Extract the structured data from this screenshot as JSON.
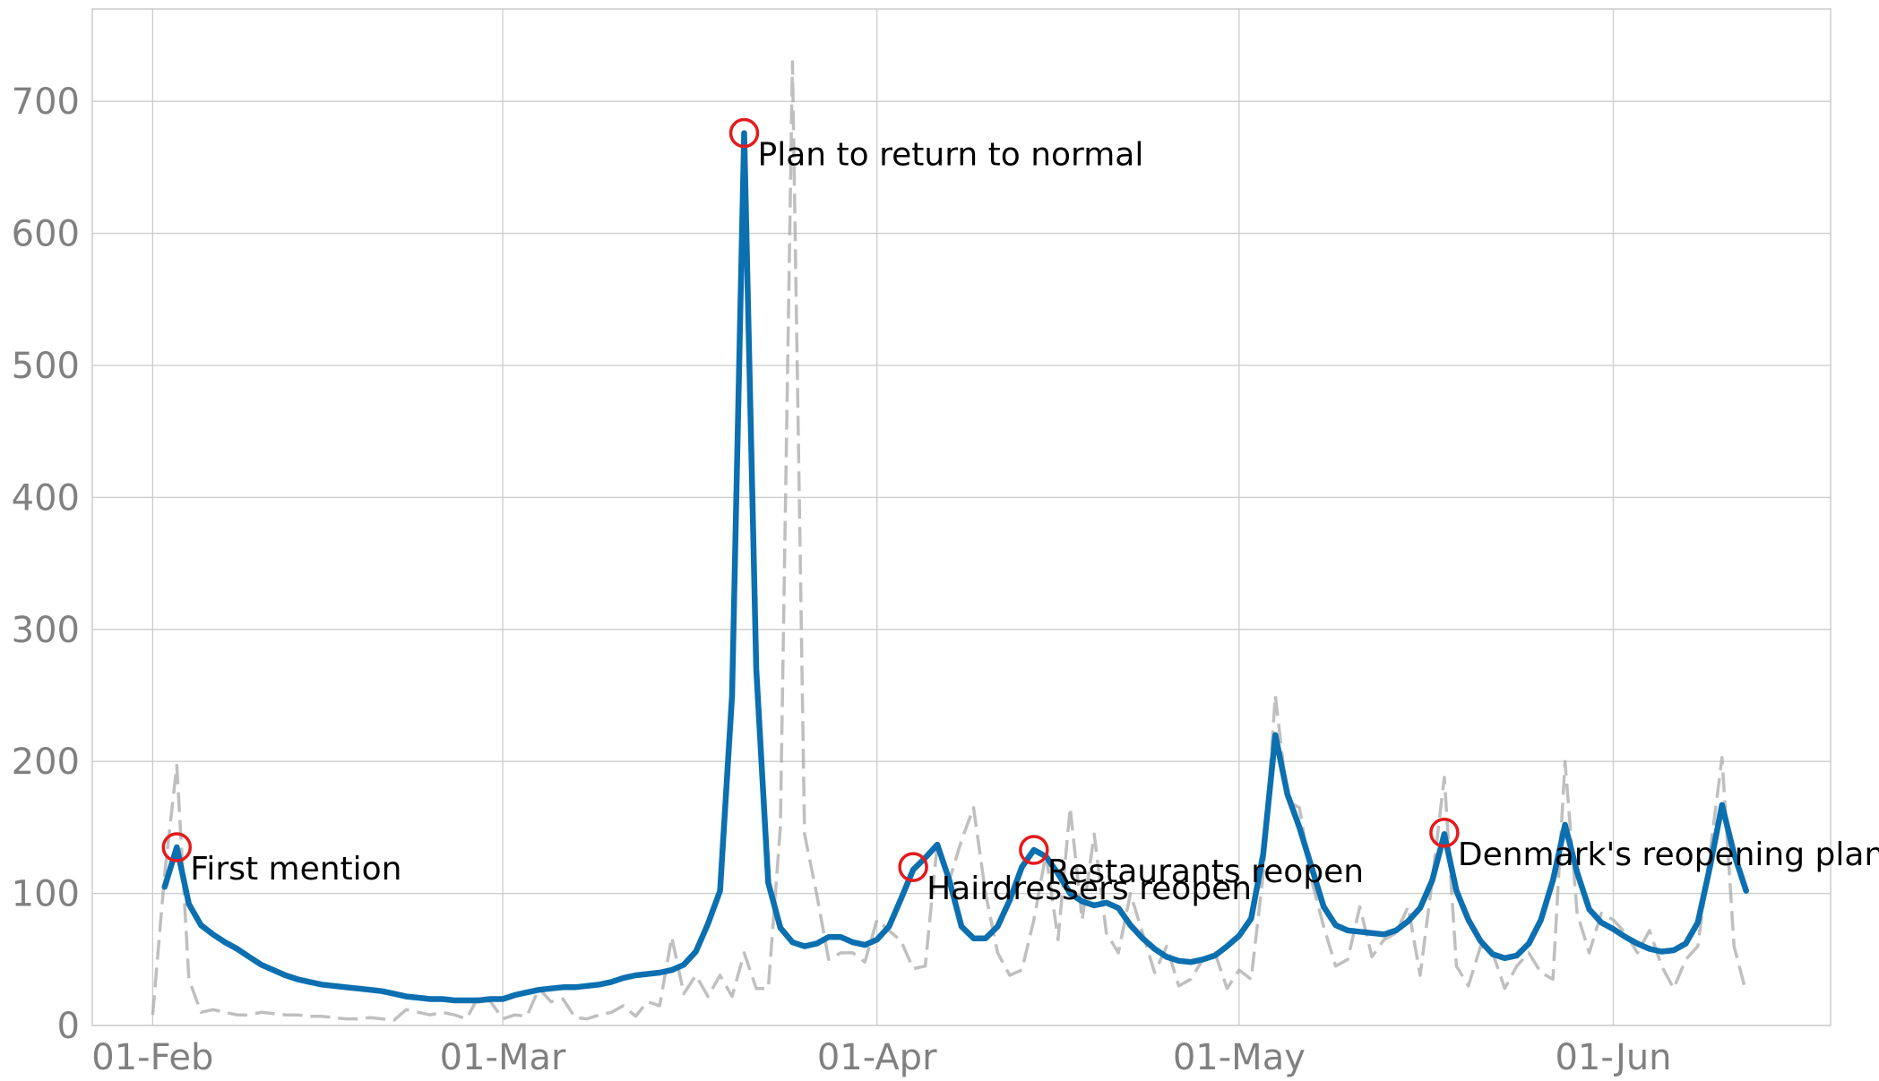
{
  "chart_data": {
    "type": "line",
    "title": "",
    "xlabel": "",
    "ylabel": "",
    "ylim": [
      0,
      770
    ],
    "y_ticks": [
      0,
      100,
      200,
      300,
      400,
      500,
      600,
      700
    ],
    "x_tick_labels": [
      {
        "date": "2020-02-01",
        "label": "01-Feb"
      },
      {
        "date": "2020-03-01",
        "label": "01-Mar"
      },
      {
        "date": "2020-04-01",
        "label": "01-Apr"
      },
      {
        "date": "2020-05-01",
        "label": "01-May"
      },
      {
        "date": "2020-06-01",
        "label": "01-Jun"
      }
    ],
    "grid": true,
    "colors": {
      "smoothed": "#0b6fb0",
      "raw": "#aaaaaa",
      "marker": "#e41a1c",
      "grid": "#cccccc"
    },
    "series": [
      {
        "style": "solid",
        "points": [
          [
            "2020-02-02",
            105
          ],
          [
            "2020-02-03",
            135
          ],
          [
            "2020-02-04",
            92
          ],
          [
            "2020-02-05",
            76
          ],
          [
            "2020-02-06",
            69
          ],
          [
            "2020-02-07",
            63
          ],
          [
            "2020-02-08",
            58
          ],
          [
            "2020-02-09",
            52
          ],
          [
            "2020-02-10",
            46
          ],
          [
            "2020-02-11",
            42
          ],
          [
            "2020-02-12",
            38
          ],
          [
            "2020-02-13",
            35
          ],
          [
            "2020-02-14",
            33
          ],
          [
            "2020-02-15",
            31
          ],
          [
            "2020-02-16",
            30
          ],
          [
            "2020-02-17",
            29
          ],
          [
            "2020-02-18",
            28
          ],
          [
            "2020-02-19",
            27
          ],
          [
            "2020-02-20",
            26
          ],
          [
            "2020-02-21",
            24
          ],
          [
            "2020-02-22",
            22
          ],
          [
            "2020-02-23",
            21
          ],
          [
            "2020-02-24",
            20
          ],
          [
            "2020-02-25",
            20
          ],
          [
            "2020-02-26",
            19
          ],
          [
            "2020-02-27",
            19
          ],
          [
            "2020-02-28",
            19
          ],
          [
            "2020-02-29",
            20
          ],
          [
            "2020-03-01",
            20
          ],
          [
            "2020-03-02",
            23
          ],
          [
            "2020-03-03",
            25
          ],
          [
            "2020-03-04",
            27
          ],
          [
            "2020-03-05",
            28
          ],
          [
            "2020-03-06",
            29
          ],
          [
            "2020-03-07",
            29
          ],
          [
            "2020-03-08",
            30
          ],
          [
            "2020-03-09",
            31
          ],
          [
            "2020-03-10",
            33
          ],
          [
            "2020-03-11",
            36
          ],
          [
            "2020-03-12",
            38
          ],
          [
            "2020-03-13",
            39
          ],
          [
            "2020-03-14",
            40
          ],
          [
            "2020-03-15",
            42
          ],
          [
            "2020-03-16",
            46
          ],
          [
            "2020-03-17",
            56
          ],
          [
            "2020-03-18",
            77
          ],
          [
            "2020-03-19",
            102
          ],
          [
            "2020-03-20",
            250
          ],
          [
            "2020-03-21",
            676
          ],
          [
            "2020-03-22",
            270
          ],
          [
            "2020-03-23",
            108
          ],
          [
            "2020-03-24",
            74
          ],
          [
            "2020-03-25",
            63
          ],
          [
            "2020-03-26",
            60
          ],
          [
            "2020-03-27",
            62
          ],
          [
            "2020-03-28",
            67
          ],
          [
            "2020-03-29",
            67
          ],
          [
            "2020-03-30",
            63
          ],
          [
            "2020-03-31",
            61
          ],
          [
            "2020-04-01",
            65
          ],
          [
            "2020-04-02",
            75
          ],
          [
            "2020-04-03",
            96
          ],
          [
            "2020-04-04",
            118
          ],
          [
            "2020-04-05",
            127
          ],
          [
            "2020-04-06",
            137
          ],
          [
            "2020-04-07",
            110
          ],
          [
            "2020-04-08",
            75
          ],
          [
            "2020-04-09",
            66
          ],
          [
            "2020-04-10",
            66
          ],
          [
            "2020-04-11",
            75
          ],
          [
            "2020-04-12",
            95
          ],
          [
            "2020-04-13",
            120
          ],
          [
            "2020-04-14",
            133
          ],
          [
            "2020-04-15",
            128
          ],
          [
            "2020-04-16",
            115
          ],
          [
            "2020-04-17",
            100
          ],
          [
            "2020-04-18",
            94
          ],
          [
            "2020-04-19",
            91
          ],
          [
            "2020-04-20",
            93
          ],
          [
            "2020-04-21",
            89
          ],
          [
            "2020-04-22",
            76
          ],
          [
            "2020-04-23",
            66
          ],
          [
            "2020-04-24",
            58
          ],
          [
            "2020-04-25",
            52
          ],
          [
            "2020-04-26",
            49
          ],
          [
            "2020-04-27",
            48
          ],
          [
            "2020-04-28",
            50
          ],
          [
            "2020-04-29",
            53
          ],
          [
            "2020-04-30",
            60
          ],
          [
            "2020-05-01",
            68
          ],
          [
            "2020-05-02",
            81
          ],
          [
            "2020-05-03",
            130
          ],
          [
            "2020-05-04",
            220
          ],
          [
            "2020-05-05",
            175
          ],
          [
            "2020-05-06",
            150
          ],
          [
            "2020-05-07",
            120
          ],
          [
            "2020-05-08",
            90
          ],
          [
            "2020-05-09",
            76
          ],
          [
            "2020-05-10",
            72
          ],
          [
            "2020-05-11",
            71
          ],
          [
            "2020-05-12",
            70
          ],
          [
            "2020-05-13",
            69
          ],
          [
            "2020-05-14",
            72
          ],
          [
            "2020-05-15",
            79
          ],
          [
            "2020-05-16",
            89
          ],
          [
            "2020-05-17",
            110
          ],
          [
            "2020-05-18",
            145
          ],
          [
            "2020-05-19",
            102
          ],
          [
            "2020-05-20",
            80
          ],
          [
            "2020-05-21",
            64
          ],
          [
            "2020-05-22",
            54
          ],
          [
            "2020-05-23",
            51
          ],
          [
            "2020-05-24",
            53
          ],
          [
            "2020-05-25",
            62
          ],
          [
            "2020-05-26",
            80
          ],
          [
            "2020-05-27",
            110
          ],
          [
            "2020-05-28",
            152
          ],
          [
            "2020-05-29",
            116
          ],
          [
            "2020-05-30",
            88
          ],
          [
            "2020-05-31",
            78
          ],
          [
            "2020-06-01",
            73
          ],
          [
            "2020-06-02",
            67
          ],
          [
            "2020-06-03",
            62
          ],
          [
            "2020-06-04",
            58
          ],
          [
            "2020-06-05",
            56
          ],
          [
            "2020-06-06",
            57
          ],
          [
            "2020-06-07",
            62
          ],
          [
            "2020-06-08",
            78
          ],
          [
            "2020-06-09",
            120
          ],
          [
            "2020-06-10",
            167
          ],
          [
            "2020-06-11",
            130
          ],
          [
            "2020-06-12",
            102
          ]
        ]
      },
      {
        "style": "dashed",
        "points": [
          [
            "2020-02-01",
            8
          ],
          [
            "2020-02-02",
            115
          ],
          [
            "2020-02-03",
            197
          ],
          [
            "2020-02-04",
            35
          ],
          [
            "2020-02-05",
            10
          ],
          [
            "2020-02-06",
            12
          ],
          [
            "2020-02-07",
            10
          ],
          [
            "2020-02-08",
            8
          ],
          [
            "2020-02-09",
            8
          ],
          [
            "2020-02-10",
            10
          ],
          [
            "2020-02-11",
            9
          ],
          [
            "2020-02-12",
            8
          ],
          [
            "2020-02-13",
            8
          ],
          [
            "2020-02-14",
            7
          ],
          [
            "2020-02-15",
            7
          ],
          [
            "2020-02-16",
            6
          ],
          [
            "2020-02-17",
            5
          ],
          [
            "2020-02-18",
            5
          ],
          [
            "2020-02-19",
            6
          ],
          [
            "2020-02-20",
            5
          ],
          [
            "2020-02-21",
            4
          ],
          [
            "2020-02-22",
            12
          ],
          [
            "2020-02-23",
            10
          ],
          [
            "2020-02-24",
            8
          ],
          [
            "2020-02-25",
            10
          ],
          [
            "2020-02-26",
            8
          ],
          [
            "2020-02-27",
            5
          ],
          [
            "2020-02-28",
            22
          ],
          [
            "2020-02-29",
            18
          ],
          [
            "2020-03-01",
            5
          ],
          [
            "2020-03-02",
            8
          ],
          [
            "2020-03-03",
            7
          ],
          [
            "2020-03-04",
            28
          ],
          [
            "2020-03-05",
            18
          ],
          [
            "2020-03-06",
            20
          ],
          [
            "2020-03-07",
            6
          ],
          [
            "2020-03-08",
            5
          ],
          [
            "2020-03-09",
            8
          ],
          [
            "2020-03-10",
            10
          ],
          [
            "2020-03-11",
            15
          ],
          [
            "2020-03-12",
            7
          ],
          [
            "2020-03-13",
            18
          ],
          [
            "2020-03-14",
            15
          ],
          [
            "2020-03-15",
            67
          ],
          [
            "2020-03-16",
            24
          ],
          [
            "2020-03-17",
            38
          ],
          [
            "2020-03-18",
            22
          ],
          [
            "2020-03-19",
            38
          ],
          [
            "2020-03-20",
            22
          ],
          [
            "2020-03-21",
            55
          ],
          [
            "2020-03-22",
            28
          ],
          [
            "2020-03-23",
            28
          ],
          [
            "2020-03-24",
            150
          ],
          [
            "2020-03-25",
            730
          ],
          [
            "2020-03-26",
            145
          ],
          [
            "2020-03-27",
            100
          ],
          [
            "2020-03-28",
            50
          ],
          [
            "2020-03-29",
            55
          ],
          [
            "2020-03-30",
            55
          ],
          [
            "2020-03-31",
            48
          ],
          [
            "2020-04-01",
            80
          ],
          [
            "2020-04-02",
            72
          ],
          [
            "2020-04-03",
            64
          ],
          [
            "2020-04-04",
            43
          ],
          [
            "2020-04-05",
            45
          ],
          [
            "2020-04-06",
            138
          ],
          [
            "2020-04-07",
            110
          ],
          [
            "2020-04-08",
            140
          ],
          [
            "2020-04-09",
            165
          ],
          [
            "2020-04-10",
            100
          ],
          [
            "2020-04-11",
            55
          ],
          [
            "2020-04-12",
            38
          ],
          [
            "2020-04-13",
            42
          ],
          [
            "2020-04-14",
            80
          ],
          [
            "2020-04-15",
            130
          ],
          [
            "2020-04-16",
            65
          ],
          [
            "2020-04-17",
            165
          ],
          [
            "2020-04-18",
            80
          ],
          [
            "2020-04-19",
            145
          ],
          [
            "2020-04-20",
            70
          ],
          [
            "2020-04-21",
            55
          ],
          [
            "2020-04-22",
            100
          ],
          [
            "2020-04-23",
            70
          ],
          [
            "2020-04-24",
            40
          ],
          [
            "2020-04-25",
            60
          ],
          [
            "2020-04-26",
            30
          ],
          [
            "2020-04-27",
            35
          ],
          [
            "2020-04-28",
            50
          ],
          [
            "2020-04-29",
            55
          ],
          [
            "2020-04-30",
            28
          ],
          [
            "2020-05-01",
            42
          ],
          [
            "2020-05-02",
            35
          ],
          [
            "2020-05-03",
            115
          ],
          [
            "2020-05-04",
            250
          ],
          [
            "2020-05-05",
            170
          ],
          [
            "2020-05-06",
            165
          ],
          [
            "2020-05-07",
            110
          ],
          [
            "2020-05-08",
            75
          ],
          [
            "2020-05-09",
            45
          ],
          [
            "2020-05-10",
            50
          ],
          [
            "2020-05-11",
            90
          ],
          [
            "2020-05-12",
            52
          ],
          [
            "2020-05-13",
            65
          ],
          [
            "2020-05-14",
            70
          ],
          [
            "2020-05-15",
            90
          ],
          [
            "2020-05-16",
            38
          ],
          [
            "2020-05-17",
            110
          ],
          [
            "2020-05-18",
            188
          ],
          [
            "2020-05-19",
            45
          ],
          [
            "2020-05-20",
            30
          ],
          [
            "2020-05-21",
            60
          ],
          [
            "2020-05-22",
            55
          ],
          [
            "2020-05-23",
            28
          ],
          [
            "2020-05-24",
            45
          ],
          [
            "2020-05-25",
            55
          ],
          [
            "2020-05-26",
            40
          ],
          [
            "2020-05-27",
            35
          ],
          [
            "2020-05-28",
            200
          ],
          [
            "2020-05-29",
            85
          ],
          [
            "2020-05-30",
            55
          ],
          [
            "2020-05-31",
            85
          ],
          [
            "2020-06-01",
            80
          ],
          [
            "2020-06-02",
            70
          ],
          [
            "2020-06-03",
            55
          ],
          [
            "2020-06-04",
            72
          ],
          [
            "2020-06-05",
            45
          ],
          [
            "2020-06-06",
            28
          ],
          [
            "2020-06-07",
            50
          ],
          [
            "2020-06-08",
            60
          ],
          [
            "2020-06-09",
            130
          ],
          [
            "2020-06-10",
            203
          ],
          [
            "2020-06-11",
            60
          ],
          [
            "2020-06-12",
            25
          ]
        ]
      }
    ],
    "annotations": [
      {
        "date": "2020-02-03",
        "y": 135,
        "label": "First mention"
      },
      {
        "date": "2020-03-21",
        "y": 676,
        "label": "Plan to return to normal"
      },
      {
        "date": "2020-04-04",
        "y": 120,
        "label": "Hairdressers reopen"
      },
      {
        "date": "2020-04-14",
        "y": 133,
        "label": "Restaurants reopen"
      },
      {
        "date": "2020-05-18",
        "y": 146,
        "label": "Denmark's reopening plan"
      }
    ]
  }
}
